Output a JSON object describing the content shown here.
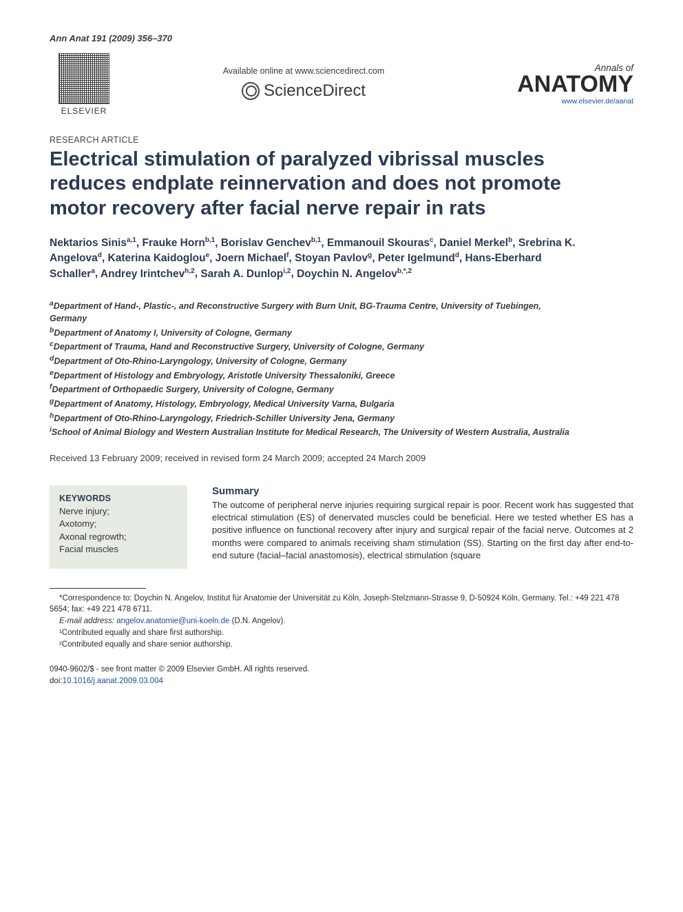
{
  "top_citation": "Ann Anat 191 (2009) 356–370",
  "header": {
    "elsevier_label": "ELSEVIER",
    "available_text": "Available online at www.sciencedirect.com",
    "sciencedirect_text": "ScienceDirect",
    "journal_small": "Annals of",
    "journal_big": "ANATOMY",
    "journal_url": "www.elsevier.de/aanat"
  },
  "article": {
    "section_label": "RESEARCH ARTICLE",
    "title": "Electrical stimulation of paralyzed vibrissal muscles reduces endplate reinnervation and does not promote motor recovery after facial nerve repair in rats"
  },
  "authors": [
    {
      "name": "Nektarios Sinis",
      "sup": "a,1"
    },
    {
      "name": "Frauke Horn",
      "sup": "b,1"
    },
    {
      "name": "Borislav Genchev",
      "sup": "b,1"
    },
    {
      "name": "Emmanouil Skouras",
      "sup": "c"
    },
    {
      "name": "Daniel Merkel",
      "sup": "b"
    },
    {
      "name": "Srebrina K. Angelova",
      "sup": "d"
    },
    {
      "name": "Katerina Kaidoglou",
      "sup": "e"
    },
    {
      "name": "Joern Michael",
      "sup": "f"
    },
    {
      "name": "Stoyan Pavlov",
      "sup": "g"
    },
    {
      "name": "Peter Igelmund",
      "sup": "d"
    },
    {
      "name": "Hans-Eberhard Schaller",
      "sup": "a"
    },
    {
      "name": "Andrey Irintchev",
      "sup": "h,2"
    },
    {
      "name": "Sarah A. Dunlop",
      "sup": "i,2"
    },
    {
      "name": "Doychin N. Angelov",
      "sup": "b,*,2"
    }
  ],
  "affiliations": [
    {
      "key": "a",
      "text": "Department of Hand-, Plastic-, and Reconstructive Surgery with Burn Unit, BG-Trauma Centre, University of Tuebingen, Germany"
    },
    {
      "key": "b",
      "text": "Department of Anatomy I, University of Cologne, Germany"
    },
    {
      "key": "c",
      "text": "Department of Trauma, Hand and Reconstructive Surgery, University of Cologne, Germany"
    },
    {
      "key": "d",
      "text": "Department of Oto-Rhino-Laryngology, University of Cologne, Germany"
    },
    {
      "key": "e",
      "text": "Department of Histology and Embryology, Aristotle University Thessaloniki, Greece"
    },
    {
      "key": "f",
      "text": "Department of Orthopaedic Surgery, University of Cologne, Germany"
    },
    {
      "key": "g",
      "text": "Department of Anatomy, Histology, Embryology, Medical University Varna, Bulgaria"
    },
    {
      "key": "h",
      "text": "Department of Oto-Rhino-Laryngology, Friedrich-Schiller University Jena, Germany"
    },
    {
      "key": "i",
      "text": "School of Animal Biology and Western Australian Institute for Medical Research, The University of Western Australia, Australia"
    }
  ],
  "received": "Received 13 February 2009; received in revised form 24 March 2009; accepted 24 March 2009",
  "keywords": {
    "heading": "KEYWORDS",
    "items": [
      "Nerve injury;",
      "Axotomy;",
      "Axonal regrowth;",
      "Facial muscles"
    ]
  },
  "summary": {
    "heading": "Summary",
    "text": "The outcome of peripheral nerve injuries requiring surgical repair is poor. Recent work has suggested that electrical stimulation (ES) of denervated muscles could be beneficial. Here we tested whether ES has a positive influence on functional recovery after injury and surgical repair of the facial nerve. Outcomes at 2 months were compared to animals receiving sham stimulation (SS). Starting on the first day after end-to-end suture (facial–facial anastomosis), electrical stimulation (square"
  },
  "footnotes": {
    "correspondence": "*Correspondence to: Doychin N. Angelov, Institut für Anatomie der Universität zu Köln, Joseph-Stelzmann-Strasse 9, D-50924 Köln, Germany. Tel.: +49 221 478 5654; fax: +49 221 478 6711.",
    "email_label": "E-mail address:",
    "email": "angelov.anatomie@uni-koeln.de",
    "email_paren": "(D.N. Angelov).",
    "note1": "¹Contributed equally and share first authorship.",
    "note2": "²Contributed equally and share senior authorship."
  },
  "bottom": {
    "issn_line": "0940-9602/$ - see front matter © 2009 Elsevier GmbH. All rights reserved.",
    "doi_prefix": "doi:",
    "doi": "10.1016/j.aanat.2009.03.004"
  },
  "colors": {
    "heading_color": "#2d3a52",
    "link_color": "#1a4c9c",
    "keywords_bg": "#e6ece3",
    "body_text": "#2c2c2c"
  },
  "typography": {
    "title_fontsize": 29,
    "title_weight": 700,
    "authors_fontsize": 15.5,
    "summary_fontsize": 13,
    "footnote_fontsize": 11.5
  }
}
